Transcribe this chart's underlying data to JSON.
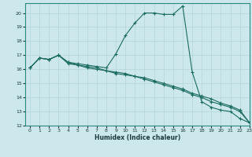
{
  "xlabel": "Humidex (Indice chaleur)",
  "ylabel": "",
  "xlim": [
    -0.5,
    23
  ],
  "ylim": [
    12,
    20.7
  ],
  "yticks": [
    12,
    13,
    14,
    15,
    16,
    17,
    18,
    19,
    20
  ],
  "xticks": [
    0,
    1,
    2,
    3,
    4,
    5,
    6,
    7,
    8,
    9,
    10,
    11,
    12,
    13,
    14,
    15,
    16,
    17,
    18,
    19,
    20,
    21,
    22,
    23
  ],
  "bg_color": "#cde8ec",
  "grid_color": "#b8d8dc",
  "line_color": "#1a6b60",
  "lines": [
    {
      "x": [
        0,
        1,
        2,
        3,
        4,
        5,
        6,
        7,
        8,
        9,
        10,
        11,
        12,
        13,
        14,
        15,
        16,
        17,
        18,
        19,
        20,
        21,
        22,
        23
      ],
      "y": [
        16.1,
        16.8,
        16.7,
        17.0,
        16.5,
        16.4,
        16.3,
        16.2,
        16.1,
        17.1,
        18.4,
        19.3,
        20.0,
        20.0,
        19.9,
        19.9,
        20.5,
        15.8,
        13.7,
        13.3,
        13.1,
        13.0,
        12.5,
        12.2
      ]
    },
    {
      "x": [
        0,
        1,
        2,
        3,
        4,
        5,
        6,
        7,
        8,
        9,
        10,
        11,
        12,
        13,
        14,
        15,
        16,
        17,
        18,
        19,
        20,
        21,
        22,
        23
      ],
      "y": [
        16.1,
        16.8,
        16.7,
        17.0,
        16.5,
        16.3,
        16.1,
        16.0,
        15.9,
        15.7,
        15.6,
        15.5,
        15.3,
        15.1,
        14.9,
        14.7,
        14.5,
        14.2,
        14.0,
        13.7,
        13.5,
        13.3,
        13.0,
        12.2
      ]
    },
    {
      "x": [
        0,
        1,
        2,
        3,
        4,
        5,
        6,
        7,
        8,
        9,
        10,
        11,
        12,
        13,
        14,
        15,
        16,
        17,
        18,
        19,
        20,
        21,
        22,
        23
      ],
      "y": [
        16.1,
        16.8,
        16.7,
        17.0,
        16.4,
        16.3,
        16.2,
        16.1,
        15.9,
        15.8,
        15.7,
        15.5,
        15.4,
        15.2,
        15.0,
        14.8,
        14.6,
        14.3,
        14.1,
        13.9,
        13.6,
        13.4,
        13.1,
        12.2
      ]
    }
  ]
}
